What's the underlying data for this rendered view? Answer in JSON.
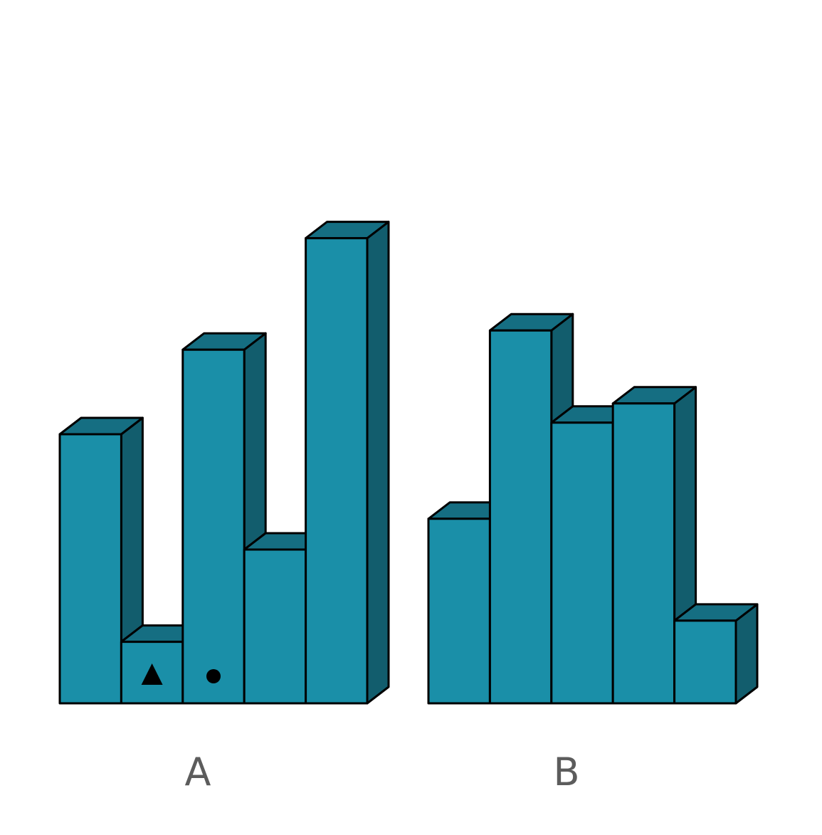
{
  "colors": {
    "front": "#1a8fa8",
    "top": "#156e82",
    "side": "#125d6d",
    "outline": "#000000",
    "marker": "#000000",
    "label": "#5c5c5c"
  },
  "groups": [
    {
      "id": "A",
      "label": "A",
      "column_heights": [
        7,
        1.6,
        9.2,
        4,
        12.1
      ],
      "markers": [
        {
          "column": 1,
          "shape": "triangle"
        },
        {
          "column": 2,
          "shape": "circle"
        }
      ]
    },
    {
      "id": "B",
      "label": "B",
      "column_heights": [
        4.8,
        9.7,
        7.3,
        7.8,
        2.15
      ],
      "markers": []
    }
  ]
}
